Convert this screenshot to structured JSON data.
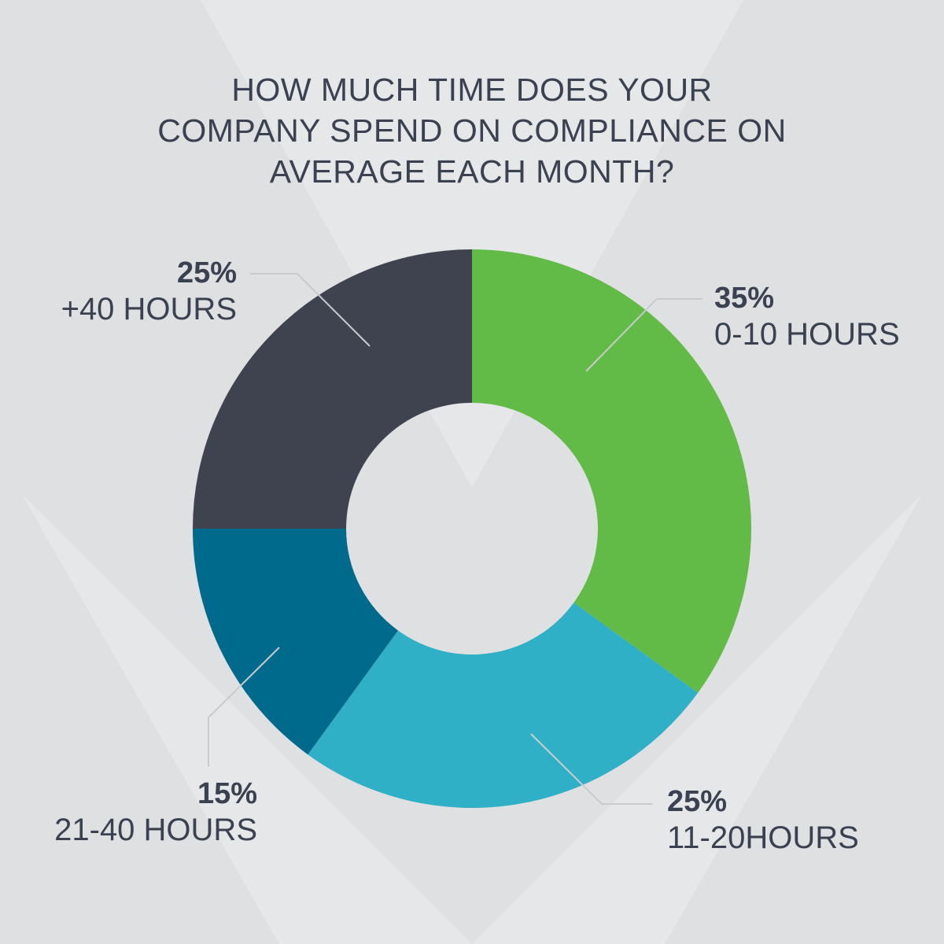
{
  "chart_data": {
    "type": "pie",
    "title_lines": [
      "HOW MUCH TIME DOES YOUR",
      "COMPANY SPEND ON COMPLIANCE ON",
      "AVERAGE EACH MONTH?"
    ],
    "slices": [
      {
        "label": "0-10 HOURS",
        "value": 35,
        "pct_label": "35%",
        "color": "#62bb46"
      },
      {
        "label": "11-20HOURS",
        "value": 25,
        "pct_label": "25%",
        "color": "#30b0c7"
      },
      {
        "label": "21-40 HOURS",
        "value": 15,
        "pct_label": "15%",
        "color": "#006a8c"
      },
      {
        "label": "+40 HOURS",
        "value": 25,
        "pct_label": "25%",
        "color": "#3f4350"
      }
    ],
    "legend": "none",
    "style": "donut"
  },
  "colors": {
    "background": "#e6e7e8",
    "text": "#3a4150",
    "leader_line": "#c9cbce"
  }
}
